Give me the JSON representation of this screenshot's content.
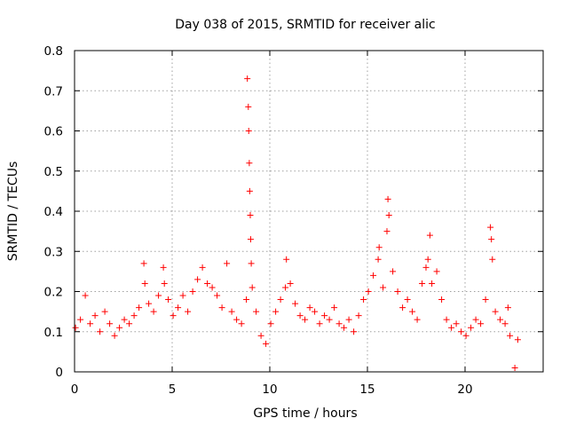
{
  "chart_data": {
    "type": "scatter",
    "title": "Day 038 of 2015, SRMTID for receiver alic",
    "xlabel": "GPS time / hours",
    "ylabel": "SRMTID / TECUs",
    "xlim": [
      0,
      24
    ],
    "ylim": [
      0,
      0.8
    ],
    "xticks": [
      0,
      5,
      10,
      15,
      20
    ],
    "yticks": [
      0,
      0.1,
      0.2,
      0.3,
      0.4,
      0.5,
      0.6,
      0.7,
      0.8
    ],
    "grid": true,
    "marker": "+",
    "color": "#ff0000",
    "series": [
      {
        "name": "SRMTID",
        "x": [
          0.05,
          0.3,
          0.55,
          0.8,
          1.05,
          1.3,
          1.55,
          1.8,
          2.05,
          2.3,
          2.55,
          2.8,
          3.05,
          3.3,
          3.55,
          3.6,
          3.8,
          4.05,
          4.3,
          4.55,
          4.6,
          4.8,
          5.05,
          5.3,
          5.55,
          5.8,
          6.05,
          6.3,
          6.55,
          6.8,
          7.05,
          7.3,
          7.55,
          7.8,
          8.05,
          8.3,
          8.55,
          8.8,
          8.85,
          8.9,
          8.92,
          8.95,
          8.97,
          9.0,
          9.02,
          9.05,
          9.1,
          9.3,
          9.55,
          9.8,
          10.05,
          10.3,
          10.55,
          10.8,
          10.85,
          11.05,
          11.3,
          11.55,
          11.8,
          12.05,
          12.3,
          12.55,
          12.8,
          13.05,
          13.3,
          13.55,
          13.8,
          14.05,
          14.3,
          14.55,
          14.8,
          15.05,
          15.3,
          15.55,
          15.6,
          15.8,
          16.0,
          16.05,
          16.1,
          16.3,
          16.55,
          16.8,
          17.05,
          17.3,
          17.55,
          17.8,
          18.0,
          18.1,
          18.2,
          18.3,
          18.55,
          18.8,
          19.05,
          19.3,
          19.55,
          19.8,
          20.05,
          20.3,
          20.55,
          20.8,
          21.05,
          21.3,
          21.35,
          21.4,
          21.55,
          21.8,
          22.05,
          22.2,
          22.3,
          22.55,
          22.7
        ],
        "y": [
          0.11,
          0.13,
          0.19,
          0.12,
          0.14,
          0.1,
          0.15,
          0.12,
          0.09,
          0.11,
          0.13,
          0.12,
          0.14,
          0.16,
          0.27,
          0.22,
          0.17,
          0.15,
          0.19,
          0.26,
          0.22,
          0.18,
          0.14,
          0.16,
          0.19,
          0.15,
          0.2,
          0.23,
          0.26,
          0.22,
          0.21,
          0.19,
          0.16,
          0.27,
          0.15,
          0.13,
          0.12,
          0.18,
          0.73,
          0.66,
          0.6,
          0.52,
          0.45,
          0.39,
          0.33,
          0.27,
          0.21,
          0.15,
          0.09,
          0.07,
          0.12,
          0.15,
          0.18,
          0.21,
          0.28,
          0.22,
          0.17,
          0.14,
          0.13,
          0.16,
          0.15,
          0.12,
          0.14,
          0.13,
          0.16,
          0.12,
          0.11,
          0.13,
          0.1,
          0.14,
          0.18,
          0.2,
          0.24,
          0.28,
          0.31,
          0.21,
          0.35,
          0.43,
          0.39,
          0.25,
          0.2,
          0.16,
          0.18,
          0.15,
          0.13,
          0.22,
          0.26,
          0.28,
          0.34,
          0.22,
          0.25,
          0.18,
          0.13,
          0.11,
          0.12,
          0.1,
          0.09,
          0.11,
          0.13,
          0.12,
          0.18,
          0.36,
          0.33,
          0.28,
          0.15,
          0.13,
          0.12,
          0.16,
          0.09,
          0.01,
          0.08
        ]
      }
    ]
  }
}
